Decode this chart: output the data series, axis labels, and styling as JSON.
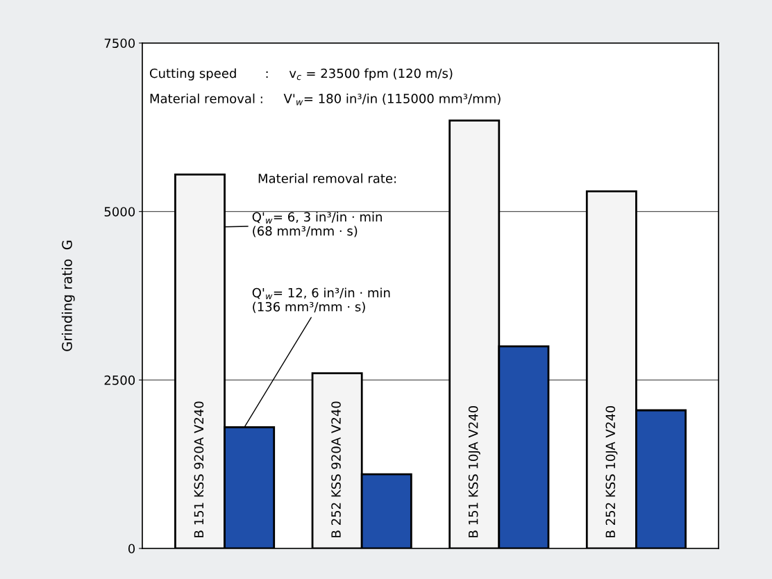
{
  "chart_data": {
    "type": "bar",
    "ylabel": "Grinding ratio  G",
    "categories": [
      "B 151 KSS 920A V240",
      "B 252 KSS 920A V240",
      "B 151 KSS 10JA V240",
      "B 252 KSS 10JA V240"
    ],
    "legend_title": "Material removal rate:",
    "series": [
      {
        "name": "Q'$_{w}$= 6, 3 in³/in · min\n(68 mm³/mm · s)",
        "color": "#f4f4f4",
        "values": [
          5550,
          2600,
          6350,
          5300
        ]
      },
      {
        "name": "Q'$_{w}$= 12, 6 in³/in · min\n(136 mm³/mm · s)",
        "color": "#1f4faa",
        "values": [
          1800,
          1100,
          3000,
          2050
        ]
      }
    ],
    "ylim": [
      0,
      7500
    ],
    "yticks": [
      0,
      2500,
      5000,
      7500
    ],
    "grid": "y",
    "annotations": [
      "Cutting speed       :     v$_{c}$ = 23500 fpm (120 m/s)",
      "Material removal :     V'$_{w}$= 180 in³/in (115000 mm³/mm)"
    ]
  }
}
